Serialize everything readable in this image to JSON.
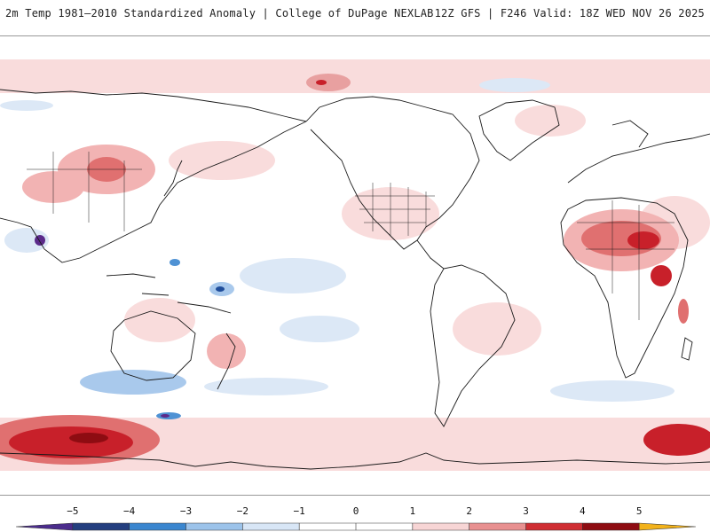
{
  "header": {
    "title": "2m Temp 1981–2010 Standardized Anomaly | College of DuPage NEXLAB",
    "run_info": "12Z GFS | F246 Valid: 18Z WED NOV 26 2025"
  },
  "map": {
    "projection": "Pacific-centered cylindrical world map",
    "colors": {
      "ocean_bg": "#ffffff",
      "coast": "#1a1a1a",
      "pale_red": "#f9dcdc",
      "light_red": "#f2b3b3",
      "mid_red": "#e07070",
      "strong_red": "#c8202a",
      "dark_red": "#8e0c12",
      "pale_blue": "#dce8f6",
      "light_blue": "#a9c9ec",
      "mid_blue": "#4f92d4",
      "dark_blue": "#1f4d9a",
      "purple": "#5b2a8a"
    }
  },
  "colorbar": {
    "labels": [
      "−5",
      "−4",
      "−3",
      "−2",
      "−1",
      "0",
      "1",
      "2",
      "3",
      "4",
      "5"
    ],
    "colors": [
      "#4b2c8c",
      "#243f7f",
      "#3a86cf",
      "#9cc3ea",
      "#d8e6f6",
      "#ffffff",
      "#ffffff",
      "#f7d5d5",
      "#e89090",
      "#cf2e33",
      "#8e0c12",
      "#f2b21b"
    ]
  }
}
